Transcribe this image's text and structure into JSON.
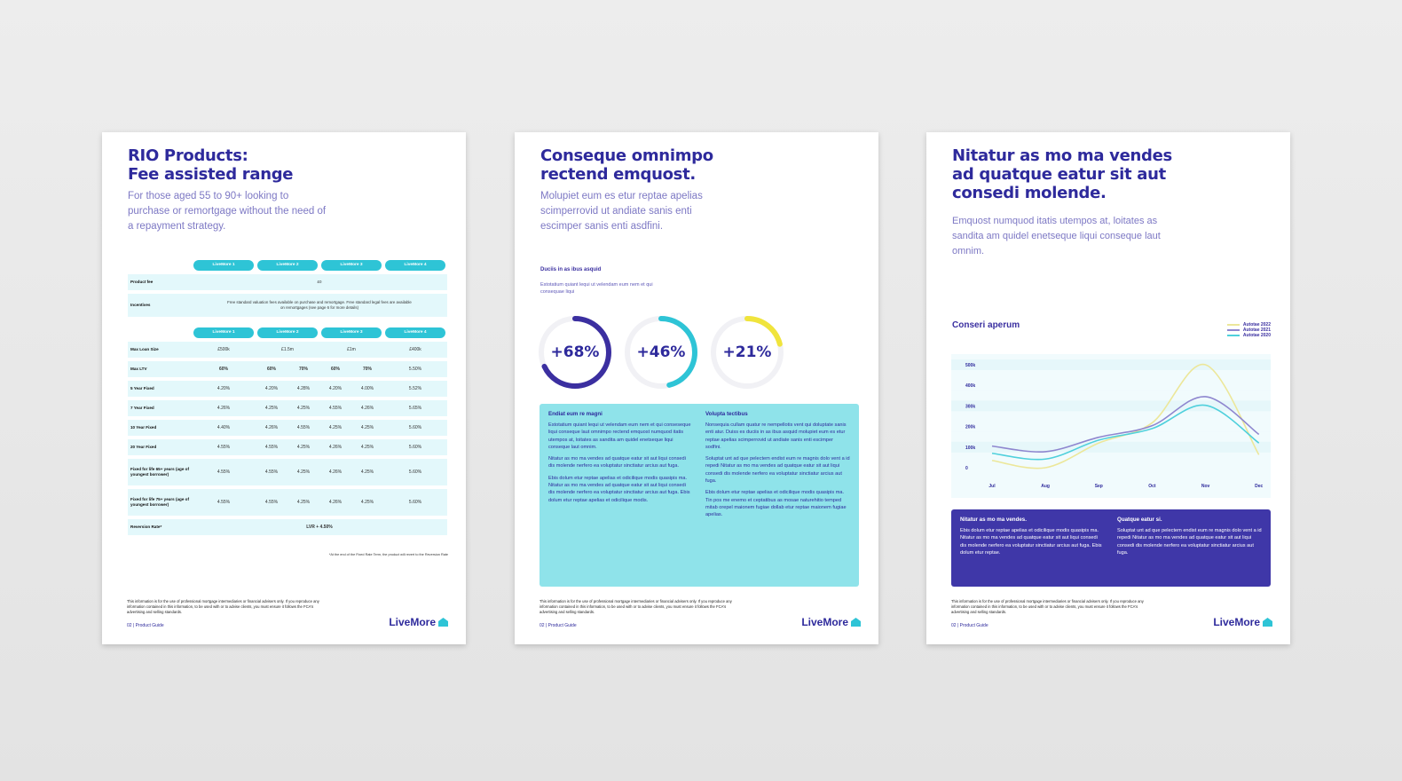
{
  "pages": [
    {
      "title_1": "RIO Products:",
      "title_2": "Fee assisted range",
      "subtitle": "For those aged 55 to 90+ looking to purchase or remortgage without the need of a repayment strategy.",
      "table": {
        "products": [
          "LiveMore 1",
          "LiveMore 2",
          "LiveMore 3",
          "LiveMore 4"
        ],
        "top_rows": [
          {
            "label": "Product fee",
            "span": "£0"
          },
          {
            "label": "Incentives",
            "span": "Free standard valuation fees available on purchase and remortgage. Free standard legal fees are available on remortgages (see page 6 for more details)"
          }
        ],
        "rows": [
          {
            "label": "Max Loan Size",
            "cells": [
              "£500k",
              "£1.5m",
              "",
              "£1m",
              "",
              "£400k"
            ],
            "merge": true
          },
          {
            "label": "Max LTV",
            "cells": [
              "60%",
              "60%",
              "70%",
              "60%",
              "70%",
              "5.50%"
            ]
          },
          {
            "label": "5 Year Fixed",
            "cells": [
              "4.20%",
              "4.20%",
              "4.28%",
              "4.20%",
              "4.00%",
              "5.52%"
            ]
          },
          {
            "label": "7 Year Fixed",
            "cells": [
              "4.26%",
              "4.25%",
              "4.25%",
              "4.55%",
              "4.26%",
              "5.65%"
            ]
          },
          {
            "label": "10 Year Fixed",
            "cells": [
              "4.40%",
              "4.26%",
              "4.55%",
              "4.25%",
              "4.25%",
              "5.60%"
            ]
          },
          {
            "label": "20 Year Fixed",
            "cells": [
              "4.55%",
              "4.55%",
              "4.25%",
              "4.26%",
              "4.25%",
              "5.60%"
            ]
          },
          {
            "label": "Fixed for life 65+ years (age of youngest borrower)",
            "cells": [
              "4.55%",
              "4.55%",
              "4.25%",
              "4.26%",
              "4.25%",
              "5.60%"
            ]
          },
          {
            "label": "Fixed for life 75+ years (age of youngest borrower)",
            "cells": [
              "4.55%",
              "4.55%",
              "4.25%",
              "4.26%",
              "4.25%",
              "5.60%"
            ]
          }
        ],
        "reversion": {
          "label": "Reversion Rate*",
          "value": "LVR + 4.50%"
        },
        "note": "*At the end of the Fixed Rate Term, the product will revert to the Reversion Rate"
      },
      "footer": "This information is for the use of professional mortgage intermediaries or financial advisers only. If you reproduce any information contained in this information, to be used with or to advise clients, you must ensure it follows the FCA's advertising and selling standards.",
      "page_label": "02 | Product Guide",
      "logo": "LiveMore"
    },
    {
      "title_1": "Conseque omnimpo",
      "title_2": "rectend emquost.",
      "subtitle": "Molupiet eum es etur reptae apelias scimperrovid ut andiate sanis enti escimper sanis enti asdfini.",
      "stat_heading": "Duciis in as ibus asquid",
      "stat_text": "Estotatium quiant lequi ut velendam eum nem et qui consequae liqui",
      "stats": [
        {
          "label": "+68%",
          "value": 68,
          "color": "#3b2fa0"
        },
        {
          "label": "+46%",
          "value": 46,
          "color": "#2ec4d6"
        },
        {
          "label": "+21%",
          "value": 21,
          "color": "#f0e43c"
        }
      ],
      "box": [
        {
          "heading": "Endiat eum re magni",
          "paras": [
            "Estotatium quiant lequi ut velendam eum nem et qui conseseque liqui conseque laut omnimpo rectend emquost numquod itatis utempos at, loitates as sandita am quidel enetseque liqui conseque laut omnim.",
            "Nitatur as mo ma vendes ad quatque eatur sit aut liqui consedi dis molende nerfero ea voluptatur sinctiatur arcius aut fuga.",
            "Ebis dolum etur reptae apelias et odicilique modis quasipis ma. Nitatur as mo ma vendes ad quatque eatur sit aut liqui consedi dis molende nerfero ea voluptatur sinctiatur arcius aut fuga. Ebis dolum etur reptae apelias et odicilique modis."
          ]
        },
        {
          "heading": "Volupta tectibus",
          "paras": [
            "Nonsequia cullam quatur re nempellotis vent qui doluptate sanis enti atur. Duiss es duciis in as ibus asquid molupiet eum es etur reptae apelias scimperrovid ut andiate sanis enti escimper sodfini.",
            "Soluptat unt ad que pelectem endist eum re magnis dolo vent a id repedi Nitatur as mo ma vendes ad quatque eatur sit aut liqui consedi dis molende nerfero ea voluptatur sinctiatur arcius aut fuga.",
            "Ebis dolum etur reptae apelias et odicilique modis quasipis ma. Tin pos me enemo et ceptatibus as mosae naturehitio temped mitab orepel maionem fugiae dollab etur reptae maionem fugiae apelias."
          ]
        }
      ],
      "footer": "This information is for the use of professional mortgage intermediaries or financial advisers only. If you reproduce any information contained in this information, to be used with or to advise clients, you must ensure it follows the FCA's advertising and selling standards.",
      "page_label": "02 | Product Guide",
      "logo": "LiveMore"
    },
    {
      "title_1": "Nitatur as mo ma vendes",
      "title_2": "ad quatque eatur sit aut",
      "title_3": "consedi molende.",
      "subtitle": "Emquost numquod itatis utempos at, loitates as sandita am quidel enetseque liqui conseque laut omnim.",
      "box": [
        {
          "heading": "Nitatur as mo ma vendes.",
          "paras": [
            "Ebis dolum etur reptae apelias et odicilique modis quasipis ma. Nitatur as mo ma vendes ad quatque eatur sit aut liqui consedi dis molende nerfero ea voluptatur sinctiatur arcius aut fuga. Ebis dolum etur reptae."
          ]
        },
        {
          "heading": "Quatque eatur si.",
          "paras": [
            "Soluptat unt ad que pelectem endist eum re magnis dolo vent a id repedi Nitatur as mo ma vendes ad quatque eatur sit aut liqui consedi dis molende nerfero ea voluptatur sinctiatur arcius aut fuga."
          ]
        }
      ],
      "footer": "This information is for the use of professional mortgage intermediaries or financial advisers only. If you reproduce any information contained in this information, to be used with or to advise clients, you must ensure it follows the FCA's advertising and selling standards.",
      "page_label": "02 | Product Guide",
      "logo": "LiveMore"
    }
  ],
  "chart_data": {
    "type": "line",
    "title": "Conseri aperum",
    "categories": [
      "Jul",
      "Aug",
      "Sep",
      "Oct",
      "Nov",
      "Dec"
    ],
    "yticks": [
      "0",
      "100k",
      "200k",
      "300k",
      "400k",
      "500k"
    ],
    "ylim": [
      0,
      500000
    ],
    "grid": true,
    "legend": "top-right",
    "series": [
      {
        "name": "Autotae 2022",
        "color": "#ece79a",
        "values": [
          35000,
          0,
          120000,
          218000,
          500000,
          63000
        ]
      },
      {
        "name": "Autotae 2021",
        "color": "#8e86cf",
        "values": [
          105000,
          78000,
          148000,
          204000,
          345000,
          162000
        ]
      },
      {
        "name": "Autotae 2020",
        "color": "#4fd0dc",
        "values": [
          70000,
          42000,
          134000,
          190000,
          303000,
          120000
        ]
      }
    ]
  },
  "colors": {
    "navy": "#2e2a9c",
    "teal": "#2ec4d6",
    "light_teal": "#8fe3ea",
    "purple_box": "#3f37a8"
  }
}
